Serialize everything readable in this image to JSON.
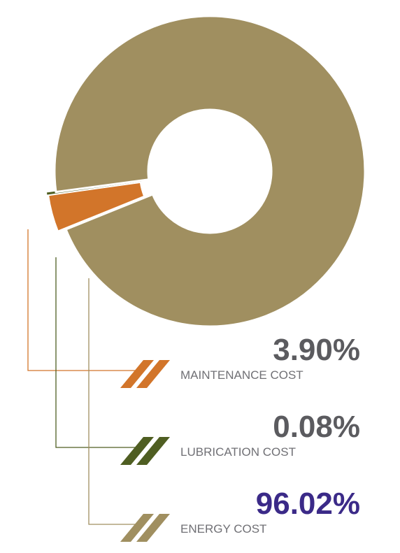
{
  "chart_data": {
    "type": "donut",
    "categories": [
      "MAINTENANCE COST",
      "LUBRICATION COST",
      "ENERGY COST"
    ],
    "values": [
      3.9,
      0.08,
      96.02
    ],
    "value_labels": [
      "3.90%",
      "0.08%",
      "96.02%"
    ],
    "colors": [
      "#d2752a",
      "#4f5e22",
      "#a08f60"
    ],
    "label_colors": [
      "#5b5b5f",
      "#5b5b5f",
      "#3b2a88"
    ]
  }
}
